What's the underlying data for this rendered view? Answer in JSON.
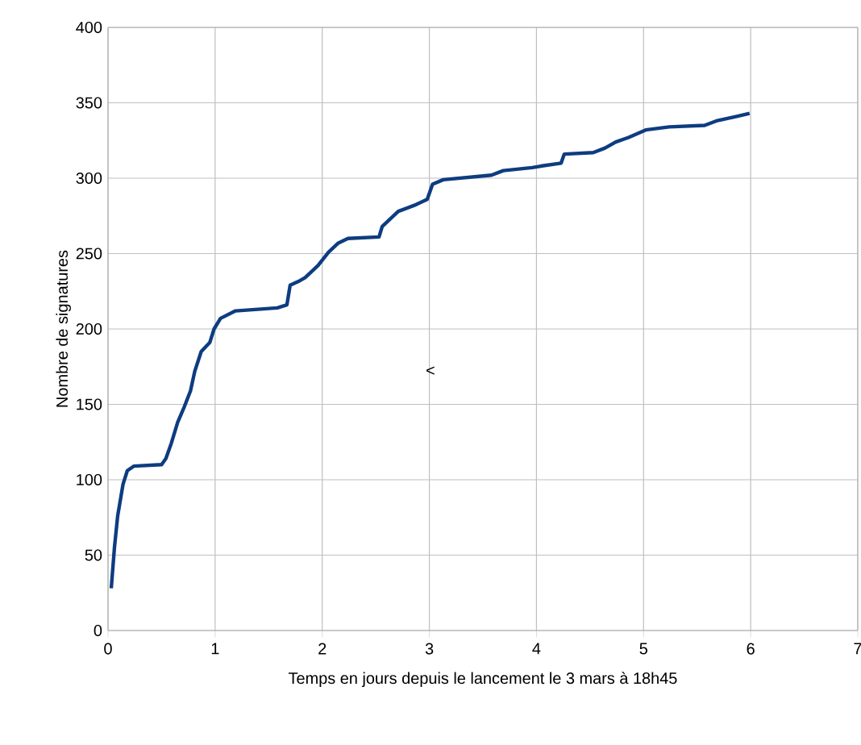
{
  "chart_data": {
    "type": "line",
    "xlabel": "Temps en jours depuis le lancement le 3 mars à 18h45",
    "ylabel": "Nombre de signatures",
    "annotations": [
      "<"
    ],
    "xlim": [
      0,
      7
    ],
    "xticks": [
      0,
      1,
      2,
      3,
      4,
      5,
      6,
      7
    ],
    "ylim": [
      0,
      400
    ],
    "yticks": [
      0,
      50,
      100,
      150,
      200,
      250,
      300,
      350,
      400
    ],
    "grid": true,
    "marker": "none",
    "line_style": "solid",
    "series": [
      {
        "color": "#0e3c80",
        "x": [
          0.03,
          0.06,
          0.09,
          0.14,
          0.18,
          0.24,
          0.5,
          0.54,
          0.59,
          0.65,
          0.71,
          0.77,
          0.81,
          0.87,
          0.95,
          0.99,
          1.05,
          1.19,
          1.58,
          1.67,
          1.7,
          1.79,
          1.84,
          1.96,
          2.06,
          2.15,
          2.24,
          2.53,
          2.56,
          2.71,
          2.86,
          2.98,
          3.03,
          3.13,
          3.58,
          3.69,
          3.96,
          4.04,
          4.23,
          4.26,
          4.53,
          4.64,
          4.74,
          4.86,
          5.02,
          5.24,
          5.57,
          5.68,
          5.87,
          5.99
        ],
        "values": [
          28,
          55,
          76,
          97,
          106,
          109,
          110,
          114,
          124,
          138,
          148,
          159,
          172,
          185,
          191,
          200,
          207,
          212,
          214,
          216,
          229,
          232,
          234,
          242,
          251,
          257,
          260,
          261,
          268,
          278,
          282,
          286,
          296,
          299,
          302,
          305,
          307,
          308,
          310,
          316,
          317,
          320,
          324,
          327,
          332,
          334,
          335,
          338,
          341,
          343
        ]
      }
    ]
  }
}
